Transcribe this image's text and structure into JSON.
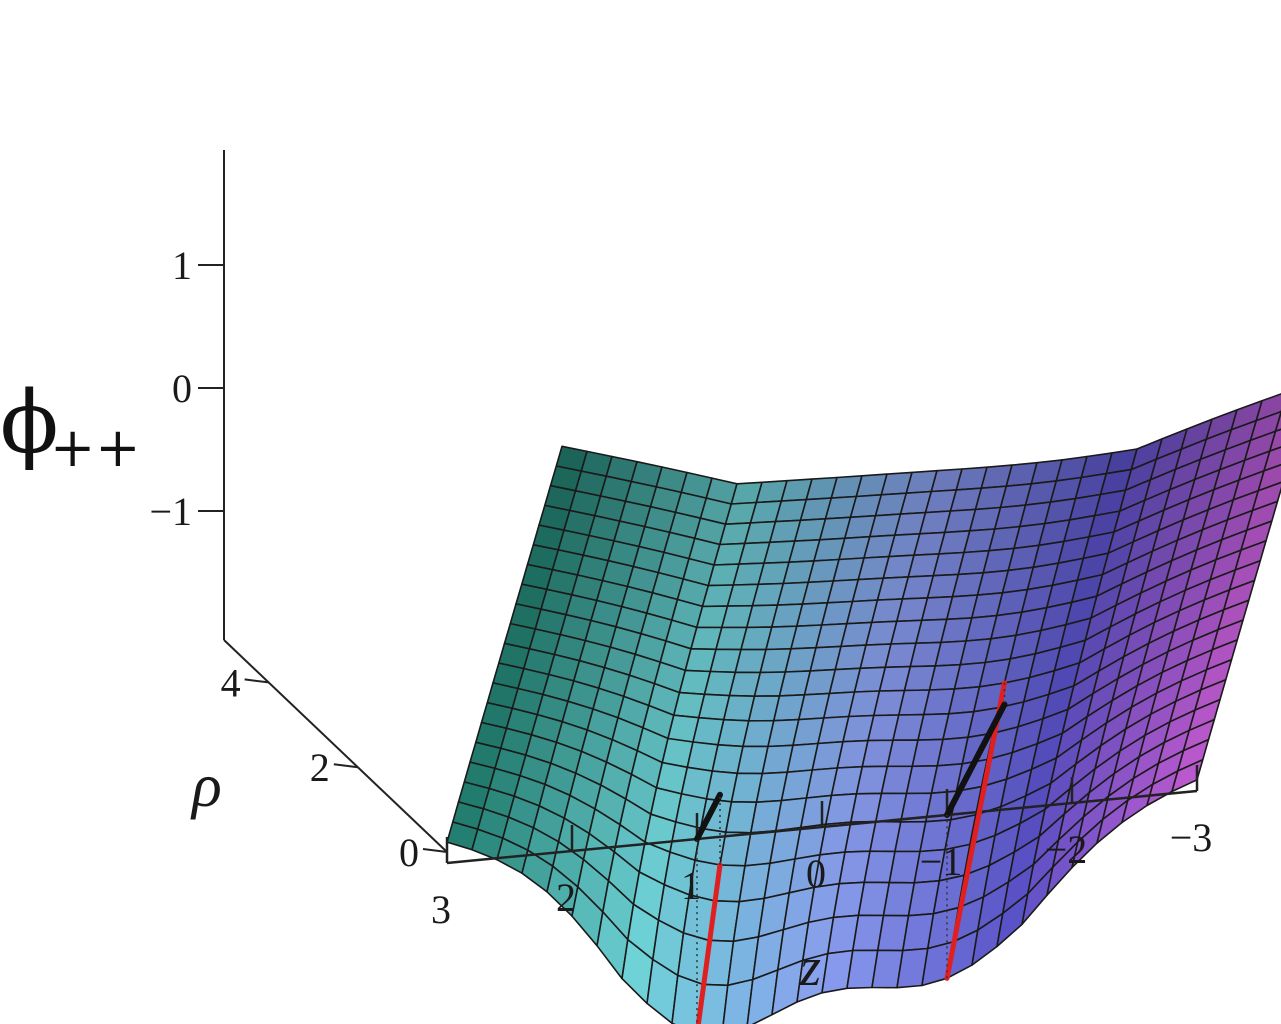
{
  "chart_data": {
    "type": "surface3d",
    "z_axis_title": "ϕ",
    "z_axis_subscript": "++",
    "rho_axis_title": "ρ",
    "x_axis_title": "z",
    "x_axis": {
      "label": "z",
      "range": [
        3,
        -3
      ],
      "ticks": [
        {
          "value": 3,
          "label": "3"
        },
        {
          "value": 2,
          "label": "2"
        },
        {
          "value": 1,
          "label": "1"
        },
        {
          "value": 0,
          "label": "0"
        },
        {
          "value": -1,
          "label": "−1"
        },
        {
          "value": -2,
          "label": "−2"
        },
        {
          "value": -3,
          "label": "−3"
        }
      ]
    },
    "rho_axis": {
      "label": "ρ",
      "range": [
        0,
        5
      ],
      "ticks": [
        {
          "value": 0,
          "label": "0"
        },
        {
          "value": 2,
          "label": "2"
        },
        {
          "value": 4,
          "label": "4"
        }
      ]
    },
    "phi_axis": {
      "range": [
        -2,
        1.8
      ],
      "ticks": [
        {
          "value": 1,
          "label": "1"
        },
        {
          "value": 0,
          "label": "0"
        },
        {
          "value": -1,
          "label": "−1"
        }
      ]
    },
    "surface": {
      "description_grid": "phi_{++}(z, rho)",
      "z_domain": [
        -3,
        3
      ],
      "rho_domain": [
        0,
        5
      ],
      "rod_segments": [
        {
          "z": 1,
          "rho_range": [
            0,
            1
          ],
          "color": "#e02020"
        },
        {
          "z": -1,
          "rho_range": [
            0,
            2.5
          ],
          "color": "#e02020"
        }
      ],
      "colormap": [
        "#1e7a6a",
        "#6fd3d8",
        "#8b9ff0",
        "#5a52c8",
        "#c25ad0"
      ]
    },
    "base_rods": [
      {
        "z": 1,
        "rho_range": [
          0,
          1
        ],
        "color": "#111111"
      },
      {
        "z": -1,
        "rho_range": [
          0,
          2.5
        ],
        "color": "#111111"
      }
    ]
  }
}
